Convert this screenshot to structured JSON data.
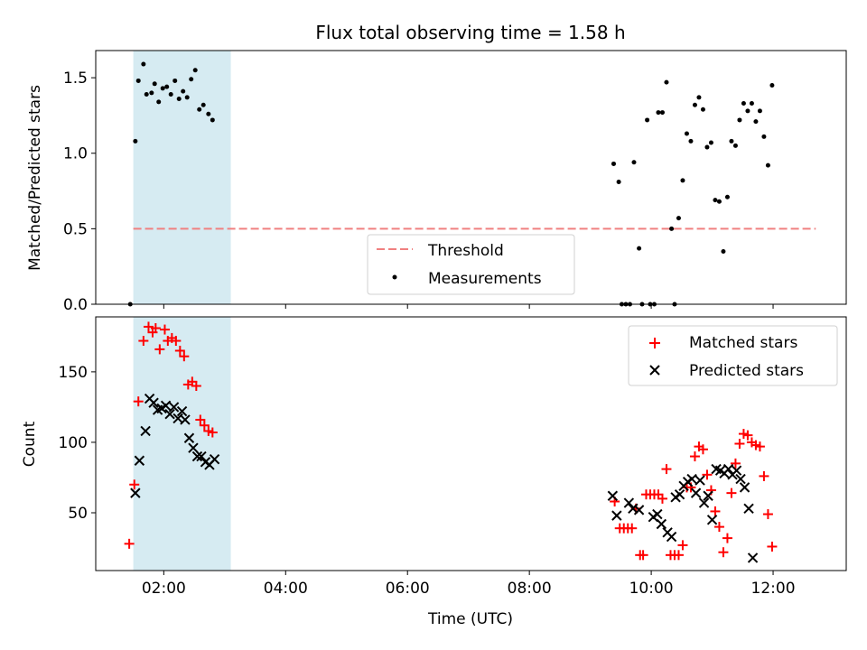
{
  "chart_data": [
    {
      "type": "scatter",
      "title": "Flux total observing time = 1.58 h",
      "xlabel": "",
      "ylabel": "Matched/Predicted stars",
      "xlim": [
        "00:53",
        "13:12"
      ],
      "ylim": [
        0,
        1.68
      ],
      "yticks": [
        0.0,
        0.5,
        1.0,
        1.5
      ],
      "ytick_labels": [
        "0.0",
        "0.5",
        "1.0",
        "1.5"
      ],
      "highlight_span": {
        "start": "01:30",
        "end": "03:06",
        "color": "#add8e6"
      },
      "threshold": {
        "name": "Threshold",
        "value": 0.5,
        "x_start": "01:30",
        "x_end": "12:42",
        "color": "#f08080"
      },
      "legend": {
        "placement": "lower-center"
      },
      "series": [
        {
          "name": "Measurements",
          "color": "#000000",
          "marker": "dot",
          "points": [
            [
              "01:27",
              0.0
            ],
            [
              "01:32",
              1.08
            ],
            [
              "01:35",
              1.48
            ],
            [
              "01:40",
              1.59
            ],
            [
              "01:43",
              1.39
            ],
            [
              "01:48",
              1.4
            ],
            [
              "01:51",
              1.46
            ],
            [
              "01:55",
              1.34
            ],
            [
              "01:59",
              1.43
            ],
            [
              "02:03",
              1.44
            ],
            [
              "02:07",
              1.39
            ],
            [
              "02:11",
              1.48
            ],
            [
              "02:15",
              1.36
            ],
            [
              "02:19",
              1.41
            ],
            [
              "02:23",
              1.37
            ],
            [
              "02:27",
              1.49
            ],
            [
              "02:31",
              1.55
            ],
            [
              "02:35",
              1.29
            ],
            [
              "02:39",
              1.32
            ],
            [
              "02:44",
              1.26
            ],
            [
              "02:48",
              1.22
            ],
            [
              "09:23",
              0.93
            ],
            [
              "09:28",
              0.81
            ],
            [
              "09:31",
              0.0
            ],
            [
              "09:35",
              0.0
            ],
            [
              "09:39",
              0.0
            ],
            [
              "09:43",
              0.94
            ],
            [
              "09:48",
              0.37
            ],
            [
              "09:51",
              0.0
            ],
            [
              "09:56",
              1.22
            ],
            [
              "09:59",
              0.0
            ],
            [
              "10:03",
              0.0
            ],
            [
              "10:07",
              1.27
            ],
            [
              "10:11",
              1.27
            ],
            [
              "10:15",
              1.47
            ],
            [
              "10:20",
              0.5
            ],
            [
              "10:23",
              0.0
            ],
            [
              "10:27",
              0.57
            ],
            [
              "10:31",
              0.82
            ],
            [
              "10:35",
              1.13
            ],
            [
              "10:39",
              1.08
            ],
            [
              "10:43",
              1.32
            ],
            [
              "10:47",
              1.37
            ],
            [
              "10:51",
              1.29
            ],
            [
              "10:55",
              1.04
            ],
            [
              "10:59",
              1.07
            ],
            [
              "11:03",
              0.69
            ],
            [
              "11:07",
              0.68
            ],
            [
              "11:11",
              0.35
            ],
            [
              "11:15",
              0.71
            ],
            [
              "11:19",
              1.08
            ],
            [
              "11:23",
              1.05
            ],
            [
              "11:27",
              1.22
            ],
            [
              "11:31",
              1.33
            ],
            [
              "11:35",
              1.28
            ],
            [
              "11:39",
              1.33
            ],
            [
              "11:43",
              1.21
            ],
            [
              "11:47",
              1.28
            ],
            [
              "11:51",
              1.11
            ],
            [
              "11:55",
              0.92
            ],
            [
              "11:59",
              1.45
            ]
          ]
        }
      ]
    },
    {
      "type": "scatter",
      "title": "",
      "xlabel": "Time (UTC)",
      "ylabel": "Count",
      "xlim": [
        "00:53",
        "13:12"
      ],
      "ylim": [
        9,
        189
      ],
      "yticks": [
        50,
        100,
        150
      ],
      "ytick_labels": [
        "50",
        "100",
        "150"
      ],
      "xticks": [
        "02:00",
        "04:00",
        "06:00",
        "08:00",
        "10:00",
        "12:00"
      ],
      "highlight_span": {
        "start": "01:30",
        "end": "03:06",
        "color": "#add8e6"
      },
      "legend": {
        "placement": "upper-right"
      },
      "series": [
        {
          "name": "Matched stars",
          "color": "#ff0000",
          "marker": "plus",
          "points": [
            [
              "01:26",
              28
            ],
            [
              "01:31",
              70
            ],
            [
              "01:35",
              129
            ],
            [
              "01:40",
              172
            ],
            [
              "01:45",
              182
            ],
            [
              "01:49",
              178
            ],
            [
              "01:52",
              181
            ],
            [
              "01:56",
              166
            ],
            [
              "02:01",
              180
            ],
            [
              "02:04",
              172
            ],
            [
              "02:08",
              174
            ],
            [
              "02:12",
              172
            ],
            [
              "02:16",
              165
            ],
            [
              "02:20",
              161
            ],
            [
              "02:24",
              141
            ],
            [
              "02:28",
              143
            ],
            [
              "02:32",
              140
            ],
            [
              "02:36",
              116
            ],
            [
              "02:40",
              112
            ],
            [
              "02:44",
              108
            ],
            [
              "02:48",
              107
            ],
            [
              "09:24",
              58
            ],
            [
              "09:29",
              39
            ],
            [
              "09:33",
              39
            ],
            [
              "09:37",
              39
            ],
            [
              "09:41",
              39
            ],
            [
              "09:45",
              53
            ],
            [
              "09:49",
              20
            ],
            [
              "09:52",
              20
            ],
            [
              "09:55",
              63
            ],
            [
              "09:59",
              63
            ],
            [
              "10:03",
              63
            ],
            [
              "10:07",
              63
            ],
            [
              "10:11",
              60
            ],
            [
              "10:15",
              81
            ],
            [
              "10:19",
              20
            ],
            [
              "10:23",
              20
            ],
            [
              "10:27",
              20
            ],
            [
              "10:31",
              27
            ],
            [
              "10:35",
              68
            ],
            [
              "10:39",
              68
            ],
            [
              "10:43",
              90
            ],
            [
              "10:47",
              97
            ],
            [
              "10:51",
              95
            ],
            [
              "10:55",
              77
            ],
            [
              "10:59",
              66
            ],
            [
              "11:03",
              51
            ],
            [
              "11:07",
              40
            ],
            [
              "11:11",
              22
            ],
            [
              "11:15",
              32
            ],
            [
              "11:19",
              64
            ],
            [
              "11:23",
              85
            ],
            [
              "11:27",
              99
            ],
            [
              "11:31",
              106
            ],
            [
              "11:35",
              105
            ],
            [
              "11:39",
              100
            ],
            [
              "11:43",
              98
            ],
            [
              "11:47",
              97
            ],
            [
              "11:51",
              76
            ],
            [
              "11:55",
              49
            ],
            [
              "11:59",
              26
            ]
          ]
        },
        {
          "name": "Predicted stars",
          "color": "#000000",
          "marker": "x",
          "points": [
            [
              "01:32",
              64
            ],
            [
              "01:36",
              87
            ],
            [
              "01:42",
              108
            ],
            [
              "01:46",
              131
            ],
            [
              "01:50",
              128
            ],
            [
              "01:54",
              123
            ],
            [
              "01:58",
              124
            ],
            [
              "02:02",
              126
            ],
            [
              "02:06",
              120
            ],
            [
              "02:10",
              125
            ],
            [
              "02:14",
              117
            ],
            [
              "02:18",
              122
            ],
            [
              "02:21",
              116
            ],
            [
              "02:25",
              103
            ],
            [
              "02:29",
              96
            ],
            [
              "02:33",
              90
            ],
            [
              "02:37",
              90
            ],
            [
              "02:41",
              86
            ],
            [
              "02:45",
              84
            ],
            [
              "02:50",
              88
            ],
            [
              "09:22",
              62
            ],
            [
              "09:26",
              48
            ],
            [
              "09:38",
              57
            ],
            [
              "09:42",
              53
            ],
            [
              "09:48",
              52
            ],
            [
              "10:02",
              47
            ],
            [
              "10:06",
              49
            ],
            [
              "10:10",
              42
            ],
            [
              "10:16",
              36
            ],
            [
              "10:20",
              33
            ],
            [
              "10:24",
              61
            ],
            [
              "10:28",
              63
            ],
            [
              "10:32",
              69
            ],
            [
              "10:36",
              72
            ],
            [
              "10:40",
              74
            ],
            [
              "10:44",
              64
            ],
            [
              "10:48",
              73
            ],
            [
              "10:52",
              57
            ],
            [
              "10:56",
              62
            ],
            [
              "11:00",
              45
            ],
            [
              "11:04",
              81
            ],
            [
              "11:08",
              80
            ],
            [
              "11:12",
              78
            ],
            [
              "11:16",
              81
            ],
            [
              "11:20",
              77
            ],
            [
              "11:24",
              80
            ],
            [
              "11:28",
              74
            ],
            [
              "11:32",
              68
            ],
            [
              "11:36",
              53
            ],
            [
              "11:40",
              18
            ]
          ]
        }
      ]
    }
  ]
}
